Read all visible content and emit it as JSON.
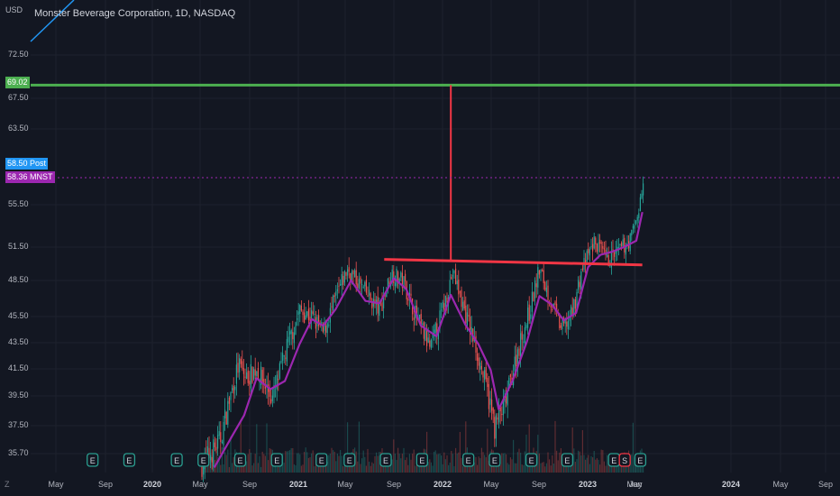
{
  "header": {
    "currency": "USD",
    "title": "Monster Beverage Corporation, 1D, NASDAQ",
    "scale_toggle": "Z"
  },
  "price_tags": {
    "target": {
      "label": "69.02",
      "color": "#4caf50"
    },
    "post": {
      "price": "58.50",
      "label": "Post",
      "color": "#2196f3"
    },
    "last": {
      "price": "58.36",
      "label": "MNST",
      "color": "#9c27b0"
    }
  },
  "colors": {
    "background": "#131722",
    "up": "#26a69a",
    "down": "#ef5350",
    "moving_average": "#9c27b0",
    "target_line": "#4caf50",
    "neckline": "#f23645",
    "earnings_badge": "#2a9d8f",
    "dividend_badge": "#f23645"
  },
  "chart_data": {
    "type": "candlestick",
    "title": "Monster Beverage Corporation, 1D, NASDAQ",
    "y_ticks": [
      "72.50",
      "67.50",
      "63.50",
      "55.50",
      "51.50",
      "48.50",
      "45.50",
      "43.50",
      "41.50",
      "39.50",
      "37.50",
      "35.70"
    ],
    "x_ticks": [
      {
        "label": "May",
        "bold": false
      },
      {
        "label": "Sep",
        "bold": false
      },
      {
        "label": "2020",
        "bold": true
      },
      {
        "label": "May",
        "bold": false
      },
      {
        "label": "Sep",
        "bold": false
      },
      {
        "label": "2021",
        "bold": true
      },
      {
        "label": "May",
        "bold": false
      },
      {
        "label": "Sep",
        "bold": false
      },
      {
        "label": "2022",
        "bold": true
      },
      {
        "label": "May",
        "bold": false
      },
      {
        "label": "Sep",
        "bold": false
      },
      {
        "label": "2023",
        "bold": true
      },
      {
        "label": "May",
        "bold": false
      },
      {
        "label": "Jun",
        "bold": false
      },
      {
        "label": "2024",
        "bold": true
      },
      {
        "label": "May",
        "bold": false
      },
      {
        "label": "Sep",
        "bold": false
      }
    ],
    "price_path": [
      [
        "2020-05-01",
        35.0
      ],
      [
        "2020-06-15",
        36.5
      ],
      [
        "2020-08-01",
        41.8
      ],
      [
        "2020-08-20",
        40.8
      ],
      [
        "2020-09-15",
        41.5
      ],
      [
        "2020-10-25",
        39.3
      ],
      [
        "2020-12-01",
        43.2
      ],
      [
        "2021-01-01",
        46.0
      ],
      [
        "2021-02-01",
        45.5
      ],
      [
        "2021-03-01",
        44.2
      ],
      [
        "2021-04-01",
        47.0
      ],
      [
        "2021-05-01",
        49.5
      ],
      [
        "2021-06-15",
        47.5
      ],
      [
        "2021-07-20",
        46.0
      ],
      [
        "2021-08-20",
        49.2
      ],
      [
        "2021-09-20",
        48.3
      ],
      [
        "2021-10-20",
        45.5
      ],
      [
        "2021-11-25",
        43.0
      ],
      [
        "2021-12-25",
        46.0
      ],
      [
        "2022-01-20",
        49.2
      ],
      [
        "2022-02-25",
        45.3
      ],
      [
        "2022-03-20",
        43.0
      ],
      [
        "2022-04-15",
        40.0
      ],
      [
        "2022-05-05",
        37.4
      ],
      [
        "2022-06-01",
        39.0
      ],
      [
        "2022-07-01",
        42.8
      ],
      [
        "2022-08-01",
        46.0
      ],
      [
        "2022-08-25",
        49.5
      ],
      [
        "2022-09-25",
        46.5
      ],
      [
        "2022-10-20",
        44.5
      ],
      [
        "2022-11-15",
        45.7
      ],
      [
        "2022-12-10",
        49.5
      ],
      [
        "2023-01-10",
        52.0
      ],
      [
        "2023-02-10",
        50.3
      ],
      [
        "2023-03-10",
        51.0
      ],
      [
        "2023-04-10",
        52.2
      ],
      [
        "2023-05-01",
        55.0
      ],
      [
        "2023-05-15",
        58.4
      ]
    ],
    "moving_average": [
      [
        "2020-06-01",
        34.8
      ],
      [
        "2020-07-15",
        36.8
      ],
      [
        "2020-08-15",
        38.2
      ],
      [
        "2020-09-15",
        40.8
      ],
      [
        "2020-10-20",
        40.0
      ],
      [
        "2020-11-25",
        40.6
      ],
      [
        "2021-01-01",
        43.4
      ],
      [
        "2021-02-01",
        45.3
      ],
      [
        "2021-03-01",
        44.8
      ],
      [
        "2021-04-01",
        46.1
      ],
      [
        "2021-05-10",
        48.5
      ],
      [
        "2021-06-15",
        46.8
      ],
      [
        "2021-07-20",
        46.6
      ],
      [
        "2021-08-25",
        48.7
      ],
      [
        "2021-09-25",
        47.8
      ],
      [
        "2021-11-01",
        44.8
      ],
      [
        "2021-12-10",
        44.0
      ],
      [
        "2022-01-15",
        47.3
      ],
      [
        "2022-02-20",
        44.9
      ],
      [
        "2022-03-25",
        43.4
      ],
      [
        "2022-04-25",
        41.4
      ],
      [
        "2022-05-15",
        38.6
      ],
      [
        "2022-06-20",
        40.7
      ],
      [
        "2022-07-25",
        43.6
      ],
      [
        "2022-08-25",
        47.2
      ],
      [
        "2022-09-25",
        46.5
      ],
      [
        "2022-10-25",
        45.2
      ],
      [
        "2022-11-25",
        45.8
      ],
      [
        "2022-12-25",
        49.7
      ],
      [
        "2023-01-25",
        50.8
      ],
      [
        "2023-02-25",
        51.1
      ],
      [
        "2023-03-25",
        51.5
      ],
      [
        "2023-04-25",
        52.1
      ],
      [
        "2023-05-10",
        54.8
      ]
    ],
    "annotations": {
      "target_price": 69.02,
      "last_price": 58.36,
      "post_price": 58.5,
      "neckline": [
        [
          "2021-08-01",
          50.4
        ],
        [
          "2023-05-10",
          49.9
        ]
      ],
      "measured_move": [
        [
          "2022-01-15",
          50.2
        ],
        [
          "2022-01-15",
          69.02
        ]
      ]
    },
    "event_markers": [
      {
        "date": "2019-08-01",
        "label": "E"
      },
      {
        "date": "2019-11-01",
        "label": "E"
      },
      {
        "date": "2020-02-28",
        "label": "E"
      },
      {
        "date": "2020-05-05",
        "label": "E"
      },
      {
        "date": "2020-08-05",
        "label": "E"
      },
      {
        "date": "2020-11-05",
        "label": "E"
      },
      {
        "date": "2021-02-25",
        "label": "E"
      },
      {
        "date": "2021-05-06",
        "label": "E"
      },
      {
        "date": "2021-08-05",
        "label": "E"
      },
      {
        "date": "2021-11-04",
        "label": "E"
      },
      {
        "date": "2022-02-28",
        "label": "E"
      },
      {
        "date": "2022-05-05",
        "label": "E"
      },
      {
        "date": "2022-08-05",
        "label": "E"
      },
      {
        "date": "2022-11-03",
        "label": "E"
      },
      {
        "date": "2023-02-28",
        "label": "E"
      },
      {
        "date": "2023-03-27",
        "label": "S"
      },
      {
        "date": "2023-05-05",
        "label": "E"
      }
    ],
    "grid": true
  }
}
